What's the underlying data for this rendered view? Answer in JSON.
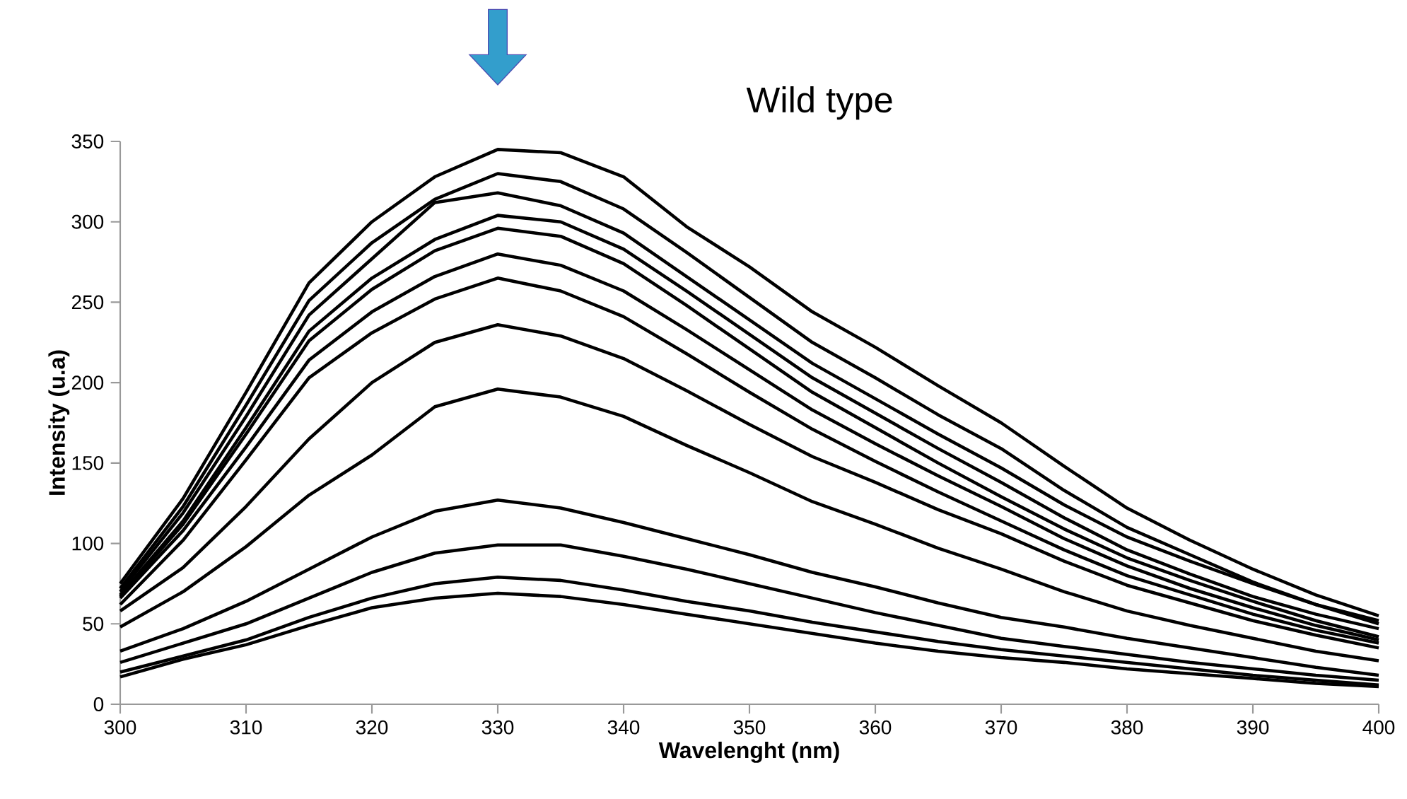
{
  "chart_data": {
    "type": "line",
    "title": "Wild type",
    "xlabel": "Wavelenght (nm)",
    "ylabel": "Intensity (u.a)",
    "x": [
      300,
      305,
      310,
      315,
      320,
      325,
      330,
      335,
      340,
      345,
      350,
      355,
      360,
      365,
      370,
      375,
      380,
      385,
      390,
      395,
      400
    ],
    "series": [
      {
        "color": "#000000",
        "values": [
          75,
          128,
          194,
          262,
          300,
          328,
          345,
          343,
          328,
          297,
          272,
          244,
          222,
          198,
          175,
          148,
          122,
          102,
          84,
          68,
          55
        ]
      },
      {
        "color": "#000000",
        "values": [
          72,
          123,
          186,
          251,
          287,
          314,
          330,
          325,
          308,
          281,
          253,
          225,
          203,
          180,
          159,
          133,
          110,
          93,
          76,
          62,
          50
        ]
      },
      {
        "color": "#000000",
        "values": [
          70,
          119,
          179,
          242,
          277,
          312,
          318,
          310,
          293,
          266,
          239,
          212,
          190,
          168,
          147,
          124,
          104,
          89,
          75,
          62,
          52
        ]
      },
      {
        "color": "#000000",
        "values": [
          68,
          114,
          172,
          232,
          265,
          289,
          304,
          300,
          283,
          257,
          230,
          203,
          181,
          159,
          138,
          116,
          96,
          81,
          67,
          56,
          47
        ]
      },
      {
        "color": "#000000",
        "values": [
          67,
          112,
          168,
          226,
          258,
          282,
          296,
          291,
          274,
          248,
          221,
          194,
          172,
          150,
          129,
          109,
          91,
          77,
          64,
          52,
          42
        ]
      },
      {
        "color": "#000000",
        "values": [
          66,
          108,
          160,
          214,
          244,
          266,
          280,
          273,
          257,
          233,
          208,
          183,
          162,
          142,
          123,
          103,
          86,
          72,
          60,
          49,
          40
        ]
      },
      {
        "color": "#000000",
        "values": [
          62,
          102,
          152,
          203,
          231,
          252,
          265,
          257,
          241,
          218,
          194,
          171,
          151,
          132,
          114,
          96,
          80,
          68,
          56,
          46,
          38
        ]
      },
      {
        "color": "#000000",
        "values": [
          58,
          85,
          123,
          165,
          200,
          225,
          236,
          229,
          215,
          195,
          174,
          154,
          138,
          121,
          106,
          89,
          74,
          63,
          52,
          43,
          35
        ]
      },
      {
        "color": "#000000",
        "values": [
          48,
          70,
          98,
          130,
          155,
          185,
          196,
          191,
          179,
          161,
          144,
          126,
          112,
          97,
          84,
          70,
          58,
          49,
          41,
          33,
          27
        ]
      },
      {
        "color": "#000000",
        "values": [
          33,
          47,
          64,
          84,
          104,
          120,
          127,
          122,
          113,
          103,
          93,
          82,
          73,
          63,
          54,
          48,
          41,
          35,
          29,
          23,
          18
        ]
      },
      {
        "color": "#000000",
        "values": [
          26,
          38,
          50,
          66,
          82,
          94,
          99,
          99,
          92,
          84,
          75,
          66,
          57,
          49,
          41,
          36,
          31,
          26,
          22,
          18,
          15
        ]
      },
      {
        "color": "#000000",
        "values": [
          20,
          30,
          40,
          54,
          66,
          75,
          79,
          77,
          71,
          64,
          58,
          51,
          45,
          39,
          34,
          30,
          26,
          22,
          18,
          15,
          12
        ]
      },
      {
        "color": "#000000",
        "values": [
          17,
          28,
          37,
          49,
          60,
          66,
          69,
          67,
          62,
          56,
          50,
          44,
          38,
          33,
          29,
          26,
          22,
          19,
          16,
          13,
          11
        ]
      }
    ],
    "xlim": [
      300,
      400
    ],
    "ylim": [
      0,
      350
    ],
    "xticks": [
      300,
      310,
      320,
      330,
      340,
      350,
      360,
      370,
      380,
      390,
      400
    ],
    "yticks": [
      0,
      50,
      100,
      150,
      200,
      250,
      300,
      350
    ]
  }
}
